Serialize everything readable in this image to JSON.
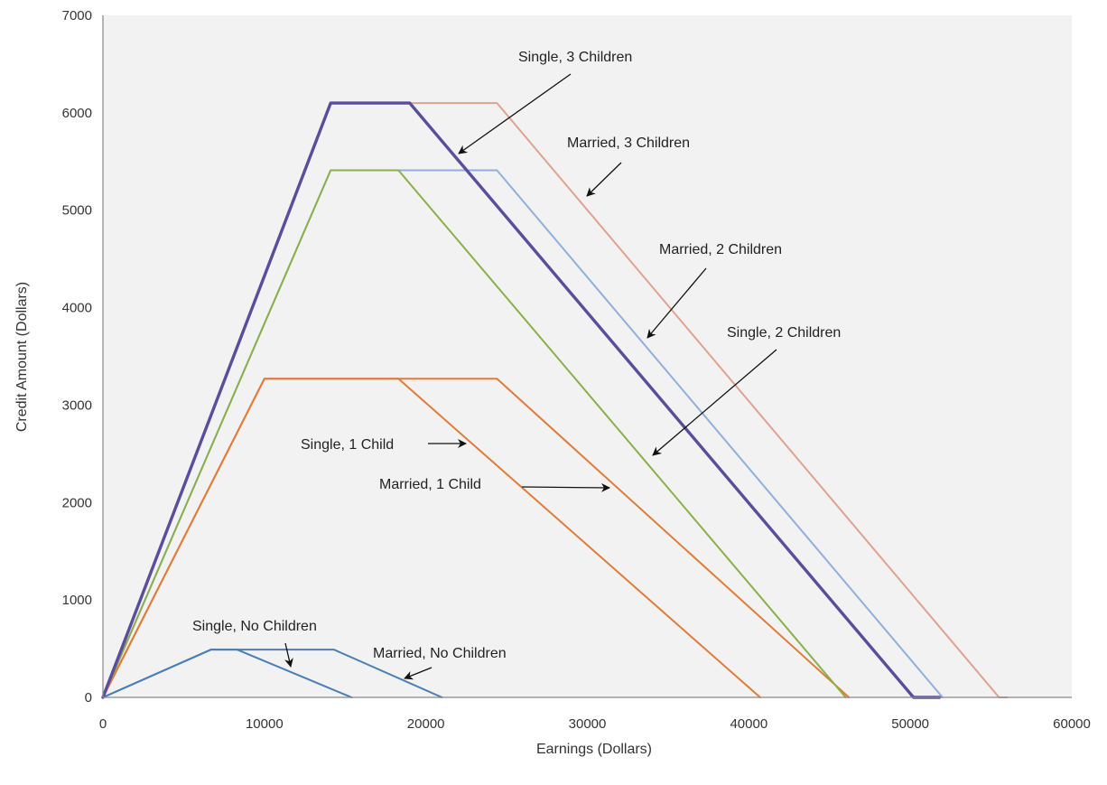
{
  "chart_data": {
    "type": "line",
    "title": "",
    "xlabel": "Earnings (Dollars)",
    "ylabel": "Credit Amount (Dollars)",
    "xlim": [
      0,
      60000
    ],
    "ylim": [
      0,
      7000
    ],
    "x_ticks": [
      "0",
      "10000",
      "20000",
      "30000",
      "40000",
      "50000",
      "60000"
    ],
    "y_ticks": [
      "0",
      "1000",
      "2000",
      "3000",
      "4000",
      "5000",
      "6000",
      "7000"
    ],
    "grid": false,
    "plot_background": "#f2f2f2",
    "series": [
      {
        "name": "Single, No Children",
        "color": "#4a7fb5",
        "points": [
          [
            0,
            0
          ],
          [
            6700,
            490
          ],
          [
            8300,
            490
          ],
          [
            15400,
            0
          ]
        ]
      },
      {
        "name": "Married, No Children",
        "color": "#4a7fb5",
        "points": [
          [
            0,
            0
          ],
          [
            6700,
            490
          ],
          [
            14300,
            490
          ],
          [
            21000,
            0
          ]
        ]
      },
      {
        "name": "Single, 1 Child",
        "color": "#e07b39",
        "points": [
          [
            0,
            0
          ],
          [
            10000,
            3270
          ],
          [
            18300,
            3270
          ],
          [
            40700,
            0
          ]
        ]
      },
      {
        "name": "Married, 1 Child",
        "color": "#e07b39",
        "points": [
          [
            0,
            0
          ],
          [
            10000,
            3270
          ],
          [
            24400,
            3270
          ],
          [
            46200,
            0
          ]
        ]
      },
      {
        "name": "Single, 2 Children",
        "color": "#8ab04a",
        "points": [
          [
            0,
            0
          ],
          [
            14100,
            5410
          ],
          [
            18300,
            5410
          ],
          [
            46000,
            0
          ]
        ]
      },
      {
        "name": "Married, 2 Children",
        "color": "#8fb0dc",
        "points": [
          [
            0,
            0
          ],
          [
            14100,
            5410
          ],
          [
            24400,
            5410
          ],
          [
            52000,
            0
          ]
        ]
      },
      {
        "name": "Single, 3 Children",
        "color": "#5a4d9c",
        "points": [
          [
            0,
            0
          ],
          [
            14100,
            6100
          ],
          [
            19000,
            6100
          ],
          [
            50200,
            0
          ],
          [
            51800,
            0
          ]
        ]
      },
      {
        "name": "Married, 3 Children",
        "color": "#e0a28e",
        "points": [
          [
            0,
            0
          ],
          [
            14100,
            6100
          ],
          [
            24400,
            6100
          ],
          [
            55500,
            0
          ],
          [
            56000,
            0
          ]
        ]
      }
    ],
    "annotations": [
      {
        "text": "Single, 3 Children"
      },
      {
        "text": "Married, 3 Children"
      },
      {
        "text": "Married, 2 Children"
      },
      {
        "text": "Single, 2 Children"
      },
      {
        "text": "Single, 1 Child"
      },
      {
        "text": "Married, 1 Child"
      },
      {
        "text": "Single, No Children"
      },
      {
        "text": "Married, No Children"
      }
    ]
  }
}
